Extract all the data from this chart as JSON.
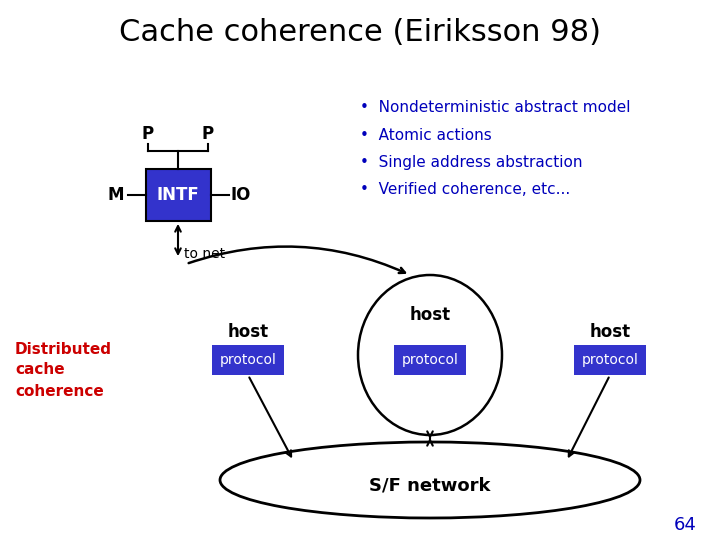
{
  "title": "Cache coherence (Eiriksson 98)",
  "title_fontsize": 22,
  "title_color": "#000000",
  "bg_color": "#ffffff",
  "intf_box_color": "#3333cc",
  "intf_text": "INTF",
  "intf_text_color": "#ffffff",
  "protocol_box_color": "#3333cc",
  "protocol_text": "protocol",
  "protocol_text_color": "#ffffff",
  "bullet_color": "#0000bb",
  "bullets": [
    "Nondeterministic abstract model",
    "Atomic actions",
    "Single address abstraction",
    "Verified coherence, etc..."
  ],
  "label_M": "M",
  "label_P_left": "P",
  "label_P_right": "P",
  "label_IO": "IO",
  "label_tonet": "to net",
  "label_host": "host",
  "label_sfnet": "S/F network",
  "label_distributed": "Distributed\ncache\ncoherence",
  "distributed_color": "#cc0000",
  "page_number": "64",
  "page_number_color": "#0000bb"
}
